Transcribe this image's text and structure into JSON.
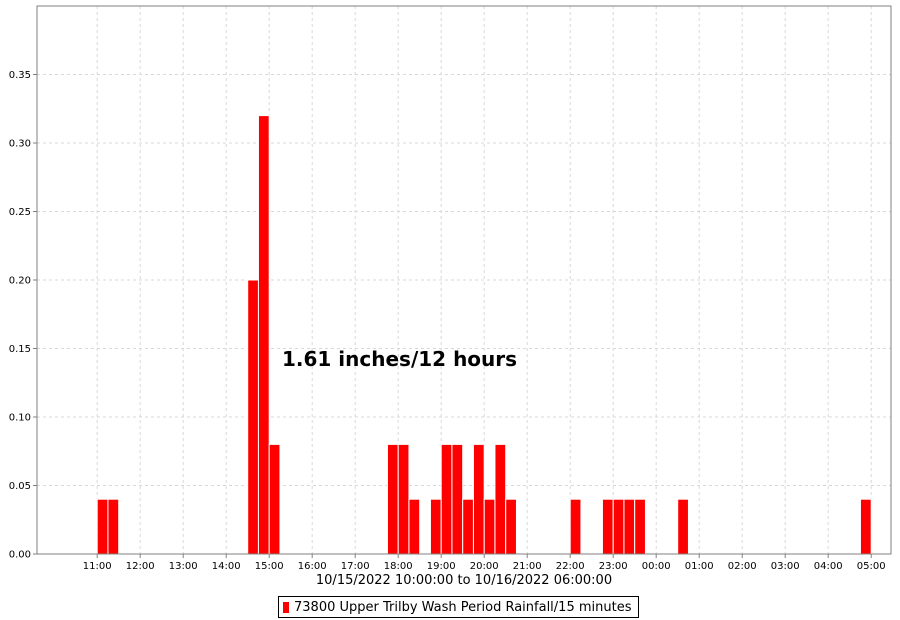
{
  "chart_data": {
    "type": "bar",
    "xlabel": "10/15/2022 10:00:00 to 10/16/2022 06:00:00",
    "ylabel": "",
    "x_start": "10/15/2022 10:00",
    "x_end": "10/16/2022 06:00",
    "bar_width_minutes": 15,
    "ylim": [
      0,
      0.4
    ],
    "yticks": [
      "0.00",
      "0.05",
      "0.10",
      "0.15",
      "0.20",
      "0.25",
      "0.30",
      "0.35"
    ],
    "ytick_values": [
      0,
      0.05,
      0.1,
      0.15,
      0.2,
      0.25,
      0.3,
      0.35
    ],
    "xticks": [
      "11:00",
      "12:00",
      "13:00",
      "14:00",
      "15:00",
      "16:00",
      "17:00",
      "18:00",
      "19:00",
      "20:00",
      "21:00",
      "22:00",
      "23:00",
      "00:00",
      "01:00",
      "02:00",
      "03:00",
      "04:00",
      "05:00"
    ],
    "grid": true,
    "legend_position": "bottom-center",
    "annotation": "1.61 inches/12 hours",
    "series": [
      {
        "name": "73800 Upper Trilby Wash Period Rainfall/15 minutes",
        "color": "#ff0000",
        "points": [
          {
            "t": "10/15/2022 11:00",
            "v": 0.04
          },
          {
            "t": "10/15/2022 11:15",
            "v": 0.04
          },
          {
            "t": "10/15/2022 14:30",
            "v": 0.2
          },
          {
            "t": "10/15/2022 14:45",
            "v": 0.32
          },
          {
            "t": "10/15/2022 15:00",
            "v": 0.08
          },
          {
            "t": "10/15/2022 17:45",
            "v": 0.08
          },
          {
            "t": "10/15/2022 18:00",
            "v": 0.08
          },
          {
            "t": "10/15/2022 18:15",
            "v": 0.04
          },
          {
            "t": "10/15/2022 18:45",
            "v": 0.04
          },
          {
            "t": "10/15/2022 19:00",
            "v": 0.08
          },
          {
            "t": "10/15/2022 19:15",
            "v": 0.08
          },
          {
            "t": "10/15/2022 19:30",
            "v": 0.04
          },
          {
            "t": "10/15/2022 19:45",
            "v": 0.08
          },
          {
            "t": "10/15/2022 20:00",
            "v": 0.04
          },
          {
            "t": "10/15/2022 20:15",
            "v": 0.08
          },
          {
            "t": "10/15/2022 20:30",
            "v": 0.04
          },
          {
            "t": "10/15/2022 22:00",
            "v": 0.04
          },
          {
            "t": "10/15/2022 22:45",
            "v": 0.04
          },
          {
            "t": "10/15/2022 23:00",
            "v": 0.04
          },
          {
            "t": "10/15/2022 23:15",
            "v": 0.04
          },
          {
            "t": "10/15/2022 23:30",
            "v": 0.04
          },
          {
            "t": "10/16/2022 00:30",
            "v": 0.04
          },
          {
            "t": "10/16/2022 04:45",
            "v": 0.04
          }
        ]
      }
    ]
  }
}
